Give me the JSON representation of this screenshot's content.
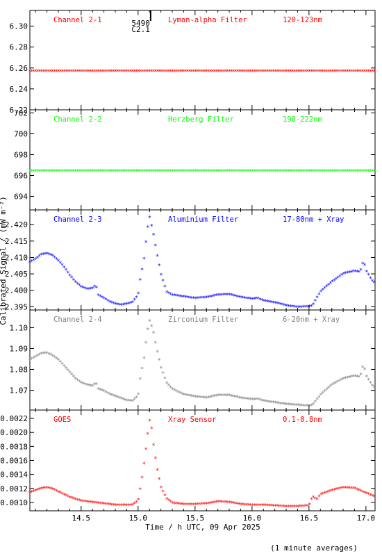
{
  "chart_data": {
    "type": "scatter",
    "xlabel": "Time / h UTC, 09 Apr 2025",
    "ylabel": "Calibrated Signal / (mW m⁻²)",
    "footnote": "(1 minute averages)",
    "xlim": [
      14.05,
      17.08
    ],
    "xticks": [
      "14.5",
      "15.0",
      "15.5",
      "16.0",
      "16.5",
      "17.0"
    ],
    "marker": "*",
    "annotation": {
      "text1": "5490",
      "text2": "C2.1",
      "x": 15.11
    },
    "panels": [
      {
        "channel": "Channel 2-1",
        "filter": "Lyman-alpha Filter",
        "band": "120-123nm",
        "color": "#ff0000",
        "ylim": [
          6.22,
          6.315
        ],
        "yticks": [
          "6.22",
          "6.24",
          "6.26",
          "6.28",
          "6.30"
        ],
        "x": [
          14.05,
          14.5,
          15.0,
          15.5,
          16.0,
          16.5,
          17.08
        ],
        "y": [
          6.257,
          6.257,
          6.257,
          6.257,
          6.257,
          6.257,
          6.257
        ]
      },
      {
        "channel": "Channel 2-2",
        "filter": "Herzberg Filter",
        "band": "190-222nm",
        "color": "#00ff00",
        "ylim": [
          692.7,
          702.3
        ],
        "yticks": [
          "694",
          "696",
          "698",
          "700",
          "702"
        ],
        "x": [
          14.05,
          14.5,
          15.0,
          15.5,
          16.0,
          16.5,
          17.08
        ],
        "y": [
          696.45,
          696.45,
          696.45,
          696.45,
          696.45,
          696.45,
          696.45
        ]
      },
      {
        "channel": "Channel 2-3",
        "filter": "Aluminium Filter",
        "band": "17-80nm + Xray",
        "color": "#0000ff",
        "ylim": [
          2.394,
          2.4245
        ],
        "yticks": [
          "2.395",
          "2.400",
          "2.405",
          "2.410",
          "2.415",
          "2.420"
        ],
        "x": [
          14.05,
          14.1,
          14.15,
          14.2,
          14.25,
          14.3,
          14.35,
          14.4,
          14.45,
          14.5,
          14.55,
          14.6,
          14.63,
          14.65,
          14.7,
          14.75,
          14.8,
          14.85,
          14.9,
          14.95,
          15.0,
          15.02,
          15.05,
          15.08,
          15.1,
          15.13,
          15.16,
          15.2,
          15.25,
          15.3,
          15.4,
          15.5,
          15.6,
          15.7,
          15.8,
          15.9,
          16.0,
          16.05,
          16.1,
          16.2,
          16.3,
          16.4,
          16.5,
          16.53,
          16.6,
          16.7,
          16.8,
          16.9,
          16.95,
          16.98,
          17.0,
          17.05,
          17.08
        ],
        "y": [
          2.4085,
          2.4095,
          2.4108,
          2.4112,
          2.4105,
          2.409,
          2.407,
          2.4045,
          2.4025,
          2.401,
          2.4003,
          2.4005,
          2.4015,
          2.3985,
          2.3975,
          2.3965,
          2.3958,
          2.3955,
          2.3958,
          2.3962,
          2.3985,
          2.4035,
          2.409,
          2.418,
          2.4225,
          2.418,
          2.412,
          2.405,
          2.3995,
          2.3985,
          2.398,
          2.3975,
          2.3978,
          2.3985,
          2.3987,
          2.3978,
          2.3973,
          2.3975,
          2.3968,
          2.3962,
          2.3953,
          2.3948,
          2.395,
          2.3952,
          2.3995,
          2.4025,
          2.405,
          2.4058,
          2.4055,
          2.409,
          2.406,
          2.403,
          2.4022
        ]
      },
      {
        "channel": "Channel 2-4",
        "filter": "Zirconium Filter",
        "band": "6-20nm + Xray",
        "color": "#808080",
        "ylim": [
          1.0605,
          1.1085
        ],
        "yticks": [
          "1.07",
          "1.08",
          "1.09",
          "1.10"
        ],
        "x": [
          14.05,
          14.1,
          14.15,
          14.2,
          14.25,
          14.3,
          14.35,
          14.4,
          14.45,
          14.5,
          14.55,
          14.6,
          14.63,
          14.65,
          14.7,
          14.75,
          14.8,
          14.85,
          14.9,
          14.95,
          15.0,
          15.02,
          15.05,
          15.08,
          15.1,
          15.13,
          15.16,
          15.2,
          15.25,
          15.3,
          15.4,
          15.5,
          15.6,
          15.7,
          15.8,
          15.9,
          16.0,
          16.05,
          16.1,
          16.2,
          16.3,
          16.4,
          16.5,
          16.53,
          16.6,
          16.7,
          16.8,
          16.9,
          16.95,
          16.98,
          17.0,
          17.05,
          17.08
        ],
        "y": [
          1.0845,
          1.086,
          1.0875,
          1.0878,
          1.0865,
          1.0845,
          1.0815,
          1.0785,
          1.0755,
          1.0735,
          1.0725,
          1.072,
          1.0735,
          1.0705,
          1.0695,
          1.068,
          1.067,
          1.066,
          1.065,
          1.0648,
          1.0672,
          1.076,
          1.0845,
          1.0975,
          1.1035,
          1.099,
          1.0905,
          1.081,
          1.0735,
          1.0705,
          1.0678,
          1.0668,
          1.0663,
          1.0675,
          1.0675,
          1.0662,
          1.0655,
          1.0657,
          1.0648,
          1.064,
          1.0632,
          1.0628,
          1.0624,
          1.0628,
          1.0675,
          1.0725,
          1.0755,
          1.0768,
          1.0763,
          1.0825,
          1.077,
          1.0725,
          1.071
        ]
      },
      {
        "channel": "GOES",
        "filter": "Xray Sensor",
        "band": "0.1-0.8nm",
        "color": "#ff0000",
        "ylim": [
          0.00088,
          0.00232
        ],
        "yticks": [
          "0.0010",
          "0.0012",
          "0.0014",
          "0.0016",
          "0.0018",
          "0.0020",
          "0.0022"
        ],
        "x": [
          14.05,
          14.1,
          14.15,
          14.2,
          14.25,
          14.3,
          14.4,
          14.5,
          14.6,
          14.7,
          14.8,
          14.9,
          14.95,
          15.0,
          15.02,
          15.04,
          15.06,
          15.08,
          15.1,
          15.12,
          15.14,
          15.17,
          15.2,
          15.25,
          15.3,
          15.4,
          15.5,
          15.6,
          15.7,
          15.8,
          15.9,
          16.0,
          16.1,
          16.2,
          16.3,
          16.4,
          16.5,
          16.53,
          16.57,
          16.6,
          16.7,
          16.8,
          16.9,
          17.0,
          17.08
        ],
        "y": [
          0.00114,
          0.00117,
          0.0012,
          0.00121,
          0.00119,
          0.00115,
          0.00107,
          0.00102,
          0.001,
          0.00098,
          0.00096,
          0.00096,
          0.00096,
          0.00102,
          0.0012,
          0.0014,
          0.00165,
          0.0019,
          0.00218,
          0.00205,
          0.00175,
          0.00145,
          0.00122,
          0.00105,
          0.00099,
          0.00097,
          0.00097,
          0.00098,
          0.00101,
          0.001,
          0.00097,
          0.00096,
          0.00096,
          0.00095,
          0.00094,
          0.00094,
          0.00095,
          0.00108,
          0.00104,
          0.00111,
          0.00117,
          0.00121,
          0.0012,
          0.00113,
          0.00108
        ]
      }
    ]
  }
}
